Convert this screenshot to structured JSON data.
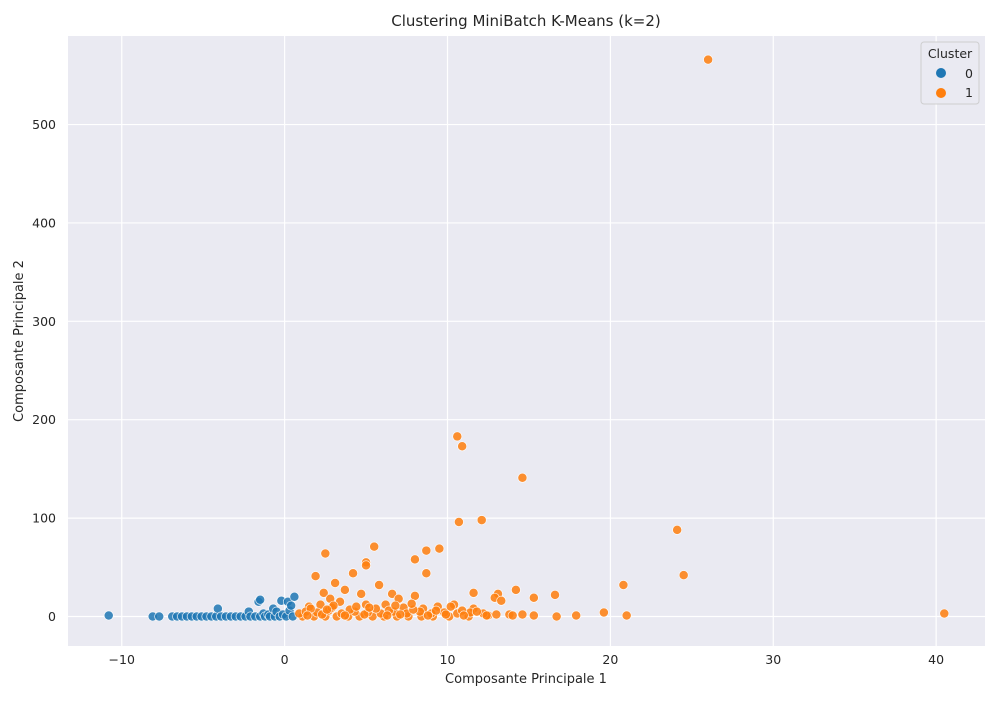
{
  "chart_data": {
    "type": "scatter",
    "title": "Clustering MiniBatch K-Means (k=2)",
    "xlabel": "Composante Principale 1",
    "ylabel": "Composante Principale 2",
    "xlim": [
      -13.3,
      43
    ],
    "ylim": [
      -30,
      590
    ],
    "xticks": [
      -10,
      0,
      10,
      20,
      30,
      40
    ],
    "yticks": [
      0,
      100,
      200,
      300,
      400,
      500
    ],
    "xtick_labels": [
      "−10",
      "0",
      "10",
      "20",
      "30",
      "40"
    ],
    "ytick_labels": [
      "0",
      "100",
      "200",
      "300",
      "400",
      "500"
    ],
    "grid": true,
    "legend": {
      "title": "Cluster",
      "placement": "top-right",
      "entries": [
        {
          "label": "0",
          "color": "#1f77b4"
        },
        {
          "label": "1",
          "color": "#ff7f0e"
        }
      ]
    },
    "series": [
      {
        "name": "0",
        "color": "#1f77b4",
        "points": [
          [
            -10.8,
            1
          ],
          [
            -8.1,
            0
          ],
          [
            -7.7,
            0
          ],
          [
            -6.9,
            0
          ],
          [
            -6.6,
            0
          ],
          [
            -6.3,
            0
          ],
          [
            -6.0,
            0
          ],
          [
            -5.7,
            0
          ],
          [
            -5.4,
            0
          ],
          [
            -5.1,
            0
          ],
          [
            -4.8,
            0
          ],
          [
            -4.5,
            0
          ],
          [
            -4.2,
            0
          ],
          [
            -4.1,
            8
          ],
          [
            -3.9,
            0
          ],
          [
            -3.6,
            0
          ],
          [
            -3.3,
            0
          ],
          [
            -3.0,
            0
          ],
          [
            -2.7,
            0
          ],
          [
            -2.4,
            0
          ],
          [
            -2.2,
            5
          ],
          [
            -2.1,
            0
          ],
          [
            -1.8,
            0
          ],
          [
            -1.6,
            15
          ],
          [
            -1.5,
            17
          ],
          [
            -1.5,
            0
          ],
          [
            -1.3,
            3
          ],
          [
            -1.2,
            0
          ],
          [
            -1.0,
            2
          ],
          [
            -0.9,
            0
          ],
          [
            -0.7,
            8
          ],
          [
            -0.6,
            0
          ],
          [
            -0.5,
            5
          ],
          [
            -0.3,
            0
          ],
          [
            -0.2,
            16
          ],
          [
            -0.1,
            2
          ],
          [
            0.1,
            0
          ],
          [
            0.2,
            15
          ],
          [
            0.3,
            6
          ],
          [
            0.5,
            0
          ],
          [
            0.6,
            20
          ],
          [
            0.4,
            11
          ]
        ]
      },
      {
        "name": "1",
        "color": "#ff7f0e",
        "points": [
          [
            26.0,
            566
          ],
          [
            10.6,
            183
          ],
          [
            10.9,
            173
          ],
          [
            14.6,
            141
          ],
          [
            10.7,
            96
          ],
          [
            12.1,
            98
          ],
          [
            24.1,
            88
          ],
          [
            5.5,
            71
          ],
          [
            9.5,
            69
          ],
          [
            8.7,
            67
          ],
          [
            2.5,
            64
          ],
          [
            8.0,
            58
          ],
          [
            5.0,
            55
          ],
          [
            5.0,
            52
          ],
          [
            4.2,
            44
          ],
          [
            8.7,
            44
          ],
          [
            24.5,
            42
          ],
          [
            1.9,
            41
          ],
          [
            3.1,
            34
          ],
          [
            5.8,
            32
          ],
          [
            20.8,
            32
          ],
          [
            14.2,
            27
          ],
          [
            3.7,
            27
          ],
          [
            2.4,
            24
          ],
          [
            11.6,
            24
          ],
          [
            13.1,
            23
          ],
          [
            16.6,
            22
          ],
          [
            6.6,
            23
          ],
          [
            12.9,
            19
          ],
          [
            15.3,
            19
          ],
          [
            7.0,
            18
          ],
          [
            4.7,
            23
          ],
          [
            8.0,
            21
          ],
          [
            13.3,
            16
          ],
          [
            2.8,
            18
          ],
          [
            6.2,
            12
          ],
          [
            10.4,
            12
          ],
          [
            9.4,
            10
          ],
          [
            11.6,
            8
          ],
          [
            3.4,
            15
          ],
          [
            5.0,
            12
          ],
          [
            1.5,
            10
          ],
          [
            2.2,
            12
          ],
          [
            7.3,
            9
          ],
          [
            8.5,
            8
          ],
          [
            19.6,
            4
          ],
          [
            40.5,
            3
          ],
          [
            14.6,
            2
          ],
          [
            17.9,
            1
          ],
          [
            21.0,
            1
          ],
          [
            15.3,
            1
          ],
          [
            16.7,
            0
          ],
          [
            13.8,
            2
          ],
          [
            12.5,
            1
          ],
          [
            11.3,
            0
          ],
          [
            10.1,
            0
          ],
          [
            9.1,
            0
          ],
          [
            8.4,
            0
          ],
          [
            7.6,
            0
          ],
          [
            6.9,
            0
          ],
          [
            6.1,
            0
          ],
          [
            5.4,
            0
          ],
          [
            4.6,
            0
          ],
          [
            3.9,
            0
          ],
          [
            3.2,
            0
          ],
          [
            2.5,
            0
          ],
          [
            1.8,
            0
          ],
          [
            1.1,
            0
          ],
          [
            0.9,
            3
          ],
          [
            1.3,
            5
          ],
          [
            2.0,
            4
          ],
          [
            2.7,
            6
          ],
          [
            3.5,
            3
          ],
          [
            4.3,
            5
          ],
          [
            5.1,
            4
          ],
          [
            5.9,
            3
          ],
          [
            6.7,
            5
          ],
          [
            7.5,
            3
          ],
          [
            8.3,
            5
          ],
          [
            9.0,
            3
          ],
          [
            9.8,
            4
          ],
          [
            10.6,
            3
          ],
          [
            11.4,
            4
          ],
          [
            12.2,
            3
          ],
          [
            13.0,
            2
          ],
          [
            1.6,
            8
          ],
          [
            2.9,
            9
          ],
          [
            4.0,
            7
          ],
          [
            5.6,
            8
          ],
          [
            6.4,
            6
          ],
          [
            7.9,
            7
          ],
          [
            9.3,
            6
          ],
          [
            10.9,
            6
          ],
          [
            3.7,
            1
          ],
          [
            4.9,
            2
          ],
          [
            6.3,
            1
          ],
          [
            7.1,
            2
          ],
          [
            8.8,
            1
          ],
          [
            9.9,
            2
          ],
          [
            11.0,
            1
          ],
          [
            12.4,
            1
          ],
          [
            14.0,
            1
          ],
          [
            2.3,
            2
          ],
          [
            1.4,
            1
          ],
          [
            3.0,
            11
          ],
          [
            4.4,
            10
          ],
          [
            5.2,
            9
          ],
          [
            6.8,
            11
          ],
          [
            7.8,
            13
          ],
          [
            10.2,
            10
          ],
          [
            11.8,
            5
          ],
          [
            2.6,
            7
          ]
        ]
      }
    ]
  }
}
